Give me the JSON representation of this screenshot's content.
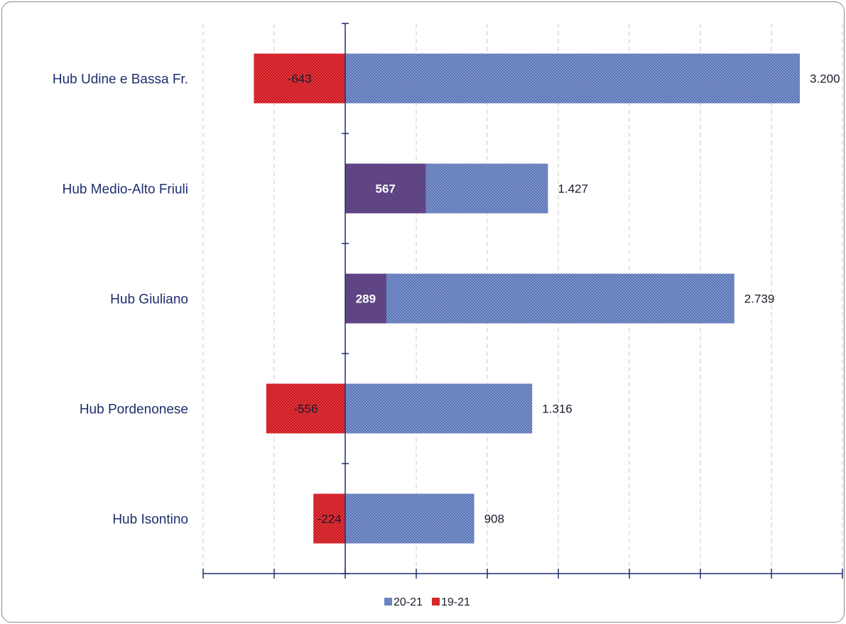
{
  "chart_data": {
    "type": "bar",
    "orientation": "horizontal",
    "categories": [
      "Hub Udine e Bassa Fr.",
      "Hub Medio-Alto Friuli",
      "Hub Giuliano",
      "Hub Pordenonese",
      "Hub Isontino"
    ],
    "series": [
      {
        "name": "20-21",
        "values": [
          3200,
          1427,
          2739,
          1316,
          908
        ],
        "labels": [
          "3.200",
          "1.427",
          "2.739",
          "1.316",
          "908"
        ],
        "color": "#6d86c4"
      },
      {
        "name": "19-21",
        "values": [
          -643,
          567,
          289,
          -556,
          -224
        ],
        "labels": [
          "-643",
          "567",
          "289",
          "-556",
          "-224"
        ],
        "color": "#d9262e"
      }
    ],
    "xlim": [
      -1000,
      3500
    ],
    "grid": true,
    "legend_position": "bottom"
  }
}
